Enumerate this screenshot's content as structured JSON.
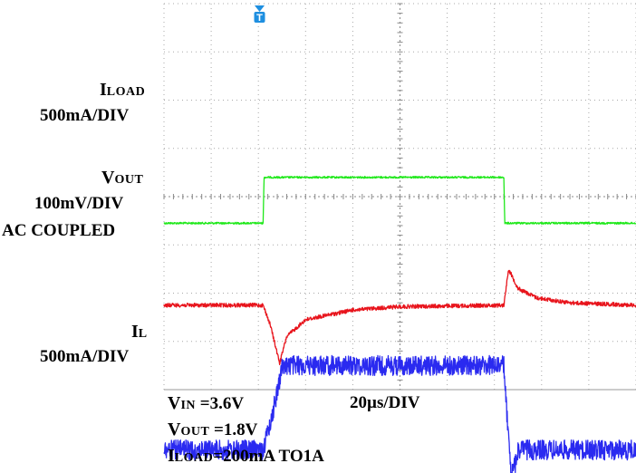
{
  "scope": {
    "trigger_marker": "T",
    "time_scale": "20µs/DIV",
    "colors": {
      "i_load": "#1fe81a",
      "v_out": "#e8141c",
      "i_l": "#2a2af0",
      "trigger": "#1e8fe0",
      "grid": "#a8a8a8"
    }
  },
  "channels": {
    "i_load": {
      "name_main": "I",
      "name_sub": "LOAD",
      "scale": "500mA/DIV"
    },
    "v_out": {
      "name_main": "V",
      "name_sub": "OUT",
      "scale": "100mV/DIV",
      "coupling": "AC COUPLED"
    },
    "i_l": {
      "name_main": "I",
      "name_sub": "L",
      "scale": "500mA/DIV"
    }
  },
  "conditions": {
    "vin": {
      "main": "V",
      "sub": "IN",
      "value": " =3.6V"
    },
    "vout": {
      "main": "V",
      "sub": "OUT",
      "value": " =1.8V"
    },
    "iload": {
      "main": "I",
      "sub": "LOAD",
      "value": "=200mA TO1A"
    }
  },
  "chart_data": {
    "type": "line",
    "xlabel": "20µs/DIV",
    "x_divisions": 10,
    "y_divisions": 8,
    "series": [
      {
        "name": "ILOAD",
        "unit": "500mA/DIV",
        "points": [
          [
            0,
            -0.55
          ],
          [
            2.1,
            -0.55
          ],
          [
            2.12,
            0.4
          ],
          [
            7.2,
            0.4
          ],
          [
            7.22,
            -0.55
          ],
          [
            10,
            -0.55
          ]
        ]
      },
      {
        "name": "VOUT",
        "unit": "100mV/DIV",
        "points": [
          [
            0,
            -2.25
          ],
          [
            2.1,
            -2.25
          ],
          [
            2.25,
            -2.65
          ],
          [
            2.45,
            -3.45
          ],
          [
            2.6,
            -2.9
          ],
          [
            3.0,
            -2.55
          ],
          [
            4.0,
            -2.35
          ],
          [
            5.0,
            -2.28
          ],
          [
            7.2,
            -2.25
          ],
          [
            7.3,
            -1.5
          ],
          [
            7.5,
            -1.9
          ],
          [
            7.9,
            -2.1
          ],
          [
            8.6,
            -2.2
          ],
          [
            10,
            -2.25
          ]
        ]
      },
      {
        "name": "IL",
        "unit": "500mA/DIV",
        "points": [
          [
            0,
            -5.25
          ],
          [
            2.1,
            -5.25
          ],
          [
            2.3,
            -4.5
          ],
          [
            2.5,
            -3.55
          ],
          [
            2.6,
            -3.5
          ],
          [
            7.2,
            -3.5
          ],
          [
            7.35,
            -5.8
          ],
          [
            7.45,
            -5.5
          ],
          [
            7.5,
            -5.25
          ],
          [
            10,
            -5.25
          ]
        ]
      }
    ]
  }
}
